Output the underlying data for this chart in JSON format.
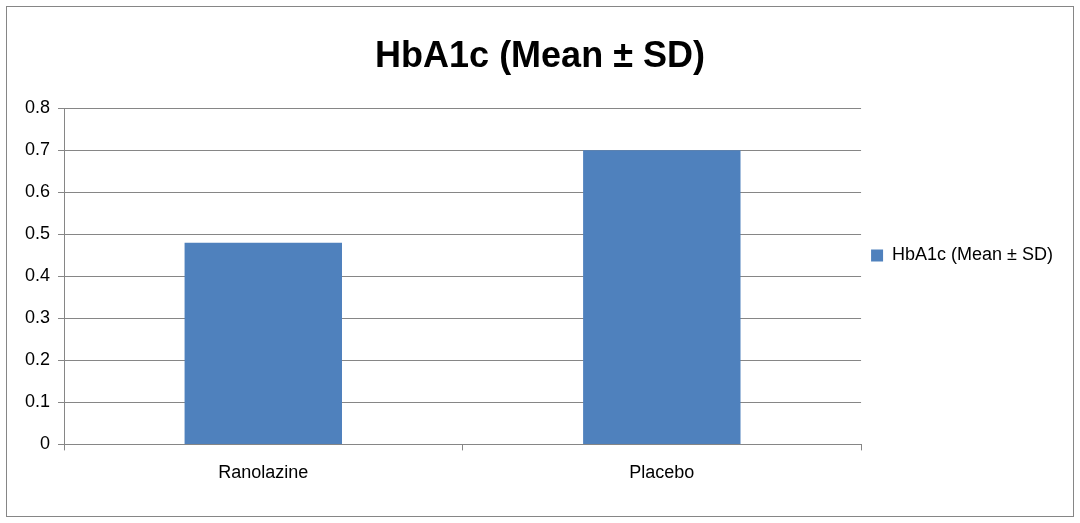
{
  "chart_data": {
    "type": "bar",
    "title": "HbA1c (Mean ± SD)",
    "categories": [
      "Ranolazine",
      "Placebo"
    ],
    "series": [
      {
        "name": "HbA1c (Mean ± SD)",
        "color": "#4f81bd",
        "values": [
          0.48,
          0.7
        ]
      }
    ],
    "ylim": [
      0,
      0.8
    ],
    "yticks": [
      0,
      0.1,
      0.2,
      0.3,
      0.4,
      0.5,
      0.6,
      0.7,
      0.8
    ],
    "grid": "y",
    "legend": "right"
  }
}
